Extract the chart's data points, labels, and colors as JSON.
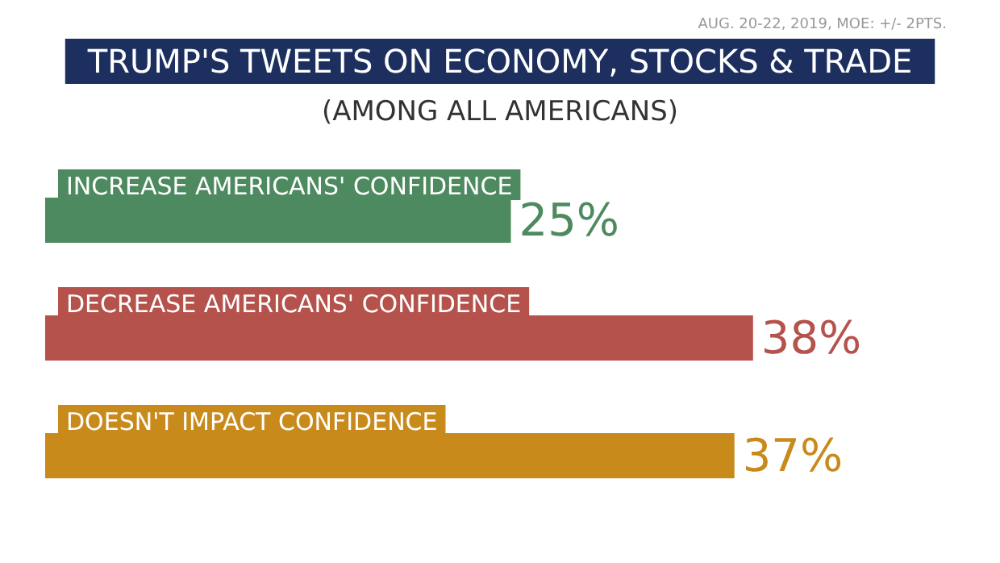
{
  "chart_data": {
    "type": "bar",
    "orientation": "horizontal",
    "title": "TRUMP'S TWEETS ON ECONOMY, STOCKS & TRADE",
    "subtitle": "(AMONG ALL AMERICANS)",
    "annotations": [
      "AUG. 20-22, 2019, MOE: +/- 2PTS."
    ],
    "categories": [
      "INCREASE AMERICANS' CONFIDENCE",
      "DECREASE AMERICANS' CONFIDENCE",
      "DOESN'T IMPACT CONFIDENCE"
    ],
    "values": [
      25,
      38,
      37
    ],
    "colors": [
      "#4e8a5f",
      "#b5524b",
      "#c98a1c"
    ],
    "value_labels": [
      "25%",
      "38%",
      "37%"
    ]
  }
}
